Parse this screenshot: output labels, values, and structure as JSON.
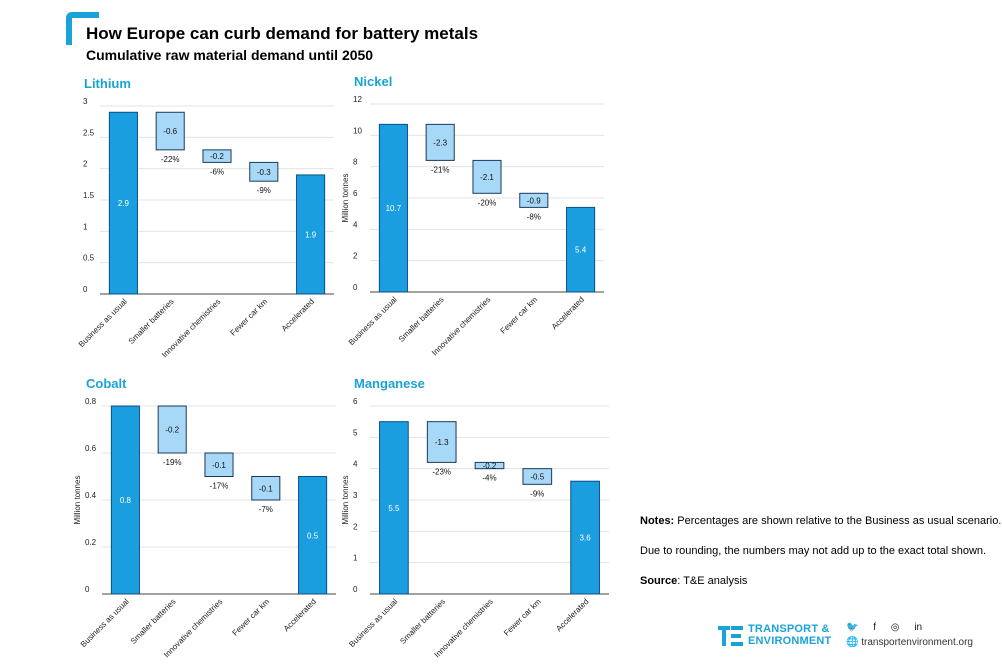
{
  "header": {
    "title": "How Europe can curb demand for battery metals",
    "subtitle": "Cumulative raw material demand until 2050"
  },
  "colors": {
    "accent": "#1aa3d9",
    "total_bar": "#1a9ee0",
    "total_bar_stroke": "#0a4f86",
    "reduction_bar": "#a8d8f8",
    "reduction_bar_stroke": "#1b3a5a",
    "grid": "#e3e3e3"
  },
  "notes": {
    "notes_label": "Notes:",
    "notes_text": "Percentages are shown relative to the Business as usual scenario.",
    "rounding_text": "Due to rounding, the numbers may not add up to the exact total shown.",
    "source_label": "Source",
    "source_text": ": T&E analysis"
  },
  "logo": {
    "line1": "TRANSPORT &",
    "line2": "ENVIRONMENT",
    "website": "transportenvironment.org",
    "social_icons": [
      "twitter-icon",
      "facebook-icon",
      "instagram-icon",
      "linkedin-icon"
    ]
  },
  "chart_data": [
    {
      "type": "bar",
      "subtype": "waterfall",
      "title": "Lithium",
      "ylabel": "",
      "ylim": [
        0,
        3
      ],
      "yticks": [
        0,
        0.5,
        1,
        1.5,
        2,
        2.5,
        3
      ],
      "grid": true,
      "categories": [
        "Business as usual",
        "Smaller batteries",
        "Innovative chemistries",
        "Fewer car km",
        "Accelerated"
      ],
      "values": [
        2.9,
        -0.6,
        -0.2,
        -0.3,
        1.9
      ],
      "value_labels": [
        "2.9",
        "-0.6",
        "-0.2",
        "-0.3",
        "1.9"
      ],
      "percent_labels": [
        "",
        "-22%",
        "-6%",
        "-9%",
        ""
      ]
    },
    {
      "type": "bar",
      "subtype": "waterfall",
      "title": "Nickel",
      "ylabel": "Million tonnes",
      "ylim": [
        0,
        12
      ],
      "yticks": [
        0,
        2,
        4,
        6,
        8,
        10,
        12
      ],
      "grid": true,
      "categories": [
        "Business as usual",
        "Smaller batteries",
        "Innovative chemistries",
        "Fewer car km",
        "Accelerated"
      ],
      "values": [
        10.7,
        -2.3,
        -2.1,
        -0.9,
        5.4
      ],
      "value_labels": [
        "10.7",
        "-2.3",
        "-2.1",
        "-0.9",
        "5.4"
      ],
      "percent_labels": [
        "",
        "-21%",
        "-20%",
        "-8%",
        ""
      ]
    },
    {
      "type": "bar",
      "subtype": "waterfall",
      "title": "Cobalt",
      "ylabel": "Million tonnes",
      "ylim": [
        0,
        0.8
      ],
      "yticks": [
        0,
        0.2,
        0.4,
        0.6,
        0.8
      ],
      "grid": true,
      "categories": [
        "Business as usual",
        "Smaller batteries",
        "Innovative chemistries",
        "Fewer car km",
        "Accelerated"
      ],
      "values": [
        0.8,
        -0.2,
        -0.1,
        -0.1,
        0.5
      ],
      "value_labels": [
        "0.8",
        "-0.2",
        "-0.1",
        "-0.1",
        "0.5"
      ],
      "percent_labels": [
        "",
        "-19%",
        "-17%",
        "-7%",
        ""
      ]
    },
    {
      "type": "bar",
      "subtype": "waterfall",
      "title": "Manganese",
      "ylabel": "Million tonnes",
      "ylim": [
        0,
        6
      ],
      "yticks": [
        0,
        1,
        2,
        3,
        4,
        5,
        6
      ],
      "grid": true,
      "categories": [
        "Business as usual",
        "Smaller batteries",
        "Innovative chemistries",
        "Fewer car km",
        "Accelerated"
      ],
      "values": [
        5.5,
        -1.3,
        -0.2,
        -0.5,
        3.6
      ],
      "value_labels": [
        "5.5",
        "-1.3",
        "-0.2",
        "-0.5",
        "3.6"
      ],
      "percent_labels": [
        "",
        "-23%",
        "-4%",
        "-9%",
        ""
      ]
    }
  ]
}
